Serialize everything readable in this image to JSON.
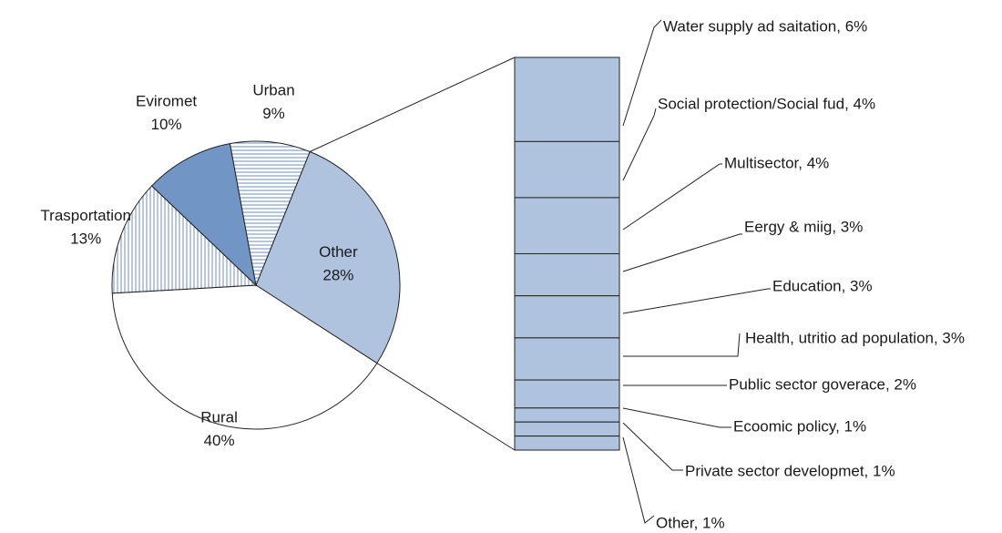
{
  "chart_data": [
    {
      "type": "pie",
      "slices": [
        {
          "label": "Other",
          "value": 28,
          "value_label": "28%",
          "fill": "#afc3df",
          "pattern": "none"
        },
        {
          "label": "Rural",
          "value": 40,
          "value_label": "40%",
          "fill": "#ffffff",
          "pattern": "none"
        },
        {
          "label": "Trasportation",
          "value": 13,
          "value_label": "13%",
          "fill": "#ffffff",
          "pattern": "vertical-lines"
        },
        {
          "label": "Eviromet",
          "value": 10,
          "value_label": "10%",
          "fill": "#7196c6",
          "pattern": "none"
        },
        {
          "label": "Urban",
          "value": 9,
          "value_label": "9%",
          "fill": "#ffffff",
          "pattern": "horizontal-lines"
        }
      ]
    },
    {
      "type": "bar",
      "stacked": true,
      "breakdown_of": "Other",
      "categories": [
        "Water supply ad saitation",
        "Social protection/Social fud",
        "Multisector",
        "Eergy & miig",
        "Education",
        "Health, utritio ad population",
        "Public sector goverace",
        "Ecoomic policy",
        "Private sector developmet",
        "Other"
      ],
      "labels": [
        "Water supply ad saitation, 6%",
        "Social protection/Social fud, 4%",
        "Multisector, 4%",
        "Eergy & miig, 3%",
        "Education, 3%",
        "Health, utritio ad population, 3%",
        "Public sector goverace, 2%",
        "Ecoomic policy, 1%",
        "Private sector developmet, 1%",
        "Other, 1%"
      ],
      "values": [
        6,
        4,
        4,
        3,
        3,
        3,
        2,
        1,
        1,
        1
      ],
      "unit": "%",
      "fill": "#afc3df"
    }
  ]
}
